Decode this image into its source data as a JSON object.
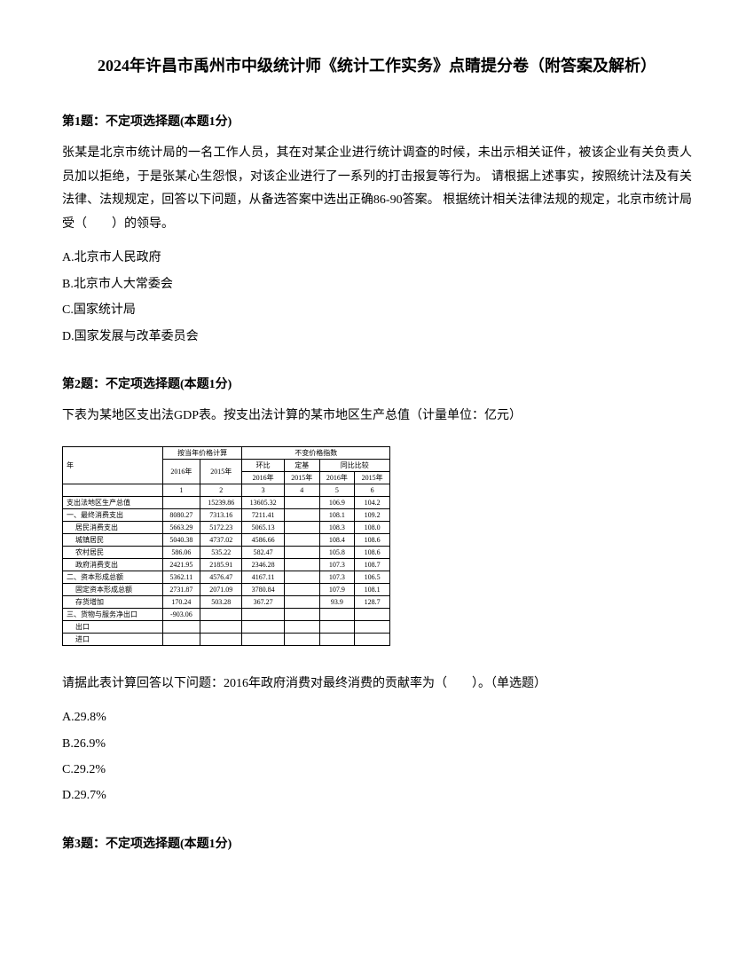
{
  "title": "2024年许昌市禹州市中级统计师《统计工作实务》点睛提分卷（附答案及解析）",
  "q1": {
    "header": "第1题：不定项选择题(本题1分)",
    "body": "张某是北京市统计局的一名工作人员，其在对某企业进行统计调查的时候，未出示相关证件，被该企业有关负责人员加以拒绝，于是张某心生怨恨，对该企业进行了一系列的打击报复等行为。 请根据上述事实，按照统计法及有关法律、法规规定，回答以下问题，从备选答案中选出正确86-90答案。 根据统计相关法律法规的规定，北京市统计局受（　　）的领导。",
    "options": {
      "a": "A.北京市人民政府",
      "b": "B.北京市人大常委会",
      "c": "C.国家统计局",
      "d": "D.国家发展与改革委员会"
    }
  },
  "q2": {
    "header": "第2题：不定项选择题(本题1分)",
    "body": "下表为某地区支出法GDP表。按支出法计算的某市地区生产总值（计量单位：亿元）",
    "post": "请据此表计算回答以下问题：2016年政府消费对最终消费的贡献率为（　　）。（单选题）",
    "options": {
      "a": "A.29.8%",
      "b": "B.26.9%",
      "c": "C.29.2%",
      "d": "D.29.7%"
    }
  },
  "q3": {
    "header": "第3题：不定项选择题(本题1分)"
  },
  "table": {
    "h1": "按当年价格计算",
    "h2": "不变价格指数",
    "h3": "环比",
    "h4": "定基",
    "h5": "同比比较",
    "y2016": "2016年",
    "y2015": "2015年",
    "col1": "1",
    "col2": "2",
    "col3": "3",
    "col4": "4",
    "col5": "5",
    "col6": "6",
    "year": "年",
    "r1": {
      "label": "支出法地区生产总值",
      "c1": "",
      "c2": "15239.86",
      "c3": "13605.32",
      "c4": "",
      "c5": "106.9",
      "c6": "104.2"
    },
    "r2": {
      "label": "一、最终消费支出",
      "c1": "8080.27",
      "c2": "7313.16",
      "c3": "7211.41",
      "c4": "",
      "c5": "108.1",
      "c6": "109.2"
    },
    "r3": {
      "label": "居民消费支出",
      "c1": "5663.29",
      "c2": "5172.23",
      "c3": "5065.13",
      "c4": "",
      "c5": "108.3",
      "c6": "108.0"
    },
    "r4": {
      "label": "城镇居民",
      "c1": "5040.38",
      "c2": "4737.02",
      "c3": "4586.66",
      "c4": "",
      "c5": "108.4",
      "c6": "108.6"
    },
    "r5": {
      "label": "农村居民",
      "c1": "586.06",
      "c2": "535.22",
      "c3": "582.47",
      "c4": "",
      "c5": "105.8",
      "c6": "108.6"
    },
    "r6": {
      "label": "政府消费支出",
      "c1": "2421.95",
      "c2": "2185.91",
      "c3": "2346.28",
      "c4": "",
      "c5": "107.3",
      "c6": "108.7"
    },
    "r7": {
      "label": "二、资本形成总额",
      "c1": "5362.11",
      "c2": "4576.47",
      "c3": "4167.11",
      "c4": "",
      "c5": "107.3",
      "c6": "106.5"
    },
    "r8": {
      "label": "固定资本形成总额",
      "c1": "2731.87",
      "c2": "2071.09",
      "c3": "3780.84",
      "c4": "",
      "c5": "107.9",
      "c6": "108.1"
    },
    "r9": {
      "label": "存货增加",
      "c1": "170.24",
      "c2": "503.28",
      "c3": "367.27",
      "c4": "",
      "c5": "93.9",
      "c6": "128.7"
    },
    "r10": {
      "label": "三、货物与服务净出口",
      "c1": "-903.06",
      "c2": "",
      "c3": "",
      "c4": "",
      "c5": "",
      "c6": ""
    },
    "r11": {
      "label": "出口",
      "c1": "",
      "c2": "",
      "c3": "",
      "c4": "",
      "c5": "",
      "c6": ""
    },
    "r12": {
      "label": "进口",
      "c1": "",
      "c2": "",
      "c3": "",
      "c4": "",
      "c5": "",
      "c6": ""
    }
  }
}
